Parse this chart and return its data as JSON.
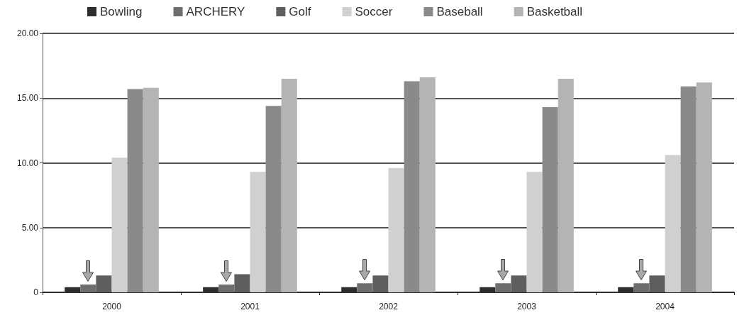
{
  "chart_data": {
    "type": "bar",
    "categories": [
      "2000",
      "2001",
      "2002",
      "2003",
      "2004"
    ],
    "series": [
      {
        "name": "Bowling",
        "color": "#2e2e2e",
        "values": [
          0.4,
          0.4,
          0.4,
          0.4,
          0.4
        ]
      },
      {
        "name": "ARCHERY",
        "color": "#6e6e6e",
        "values": [
          0.6,
          0.6,
          0.7,
          0.7,
          0.7
        ]
      },
      {
        "name": "Golf",
        "color": "#5e5e5e",
        "values": [
          1.3,
          1.4,
          1.3,
          1.3,
          1.3
        ]
      },
      {
        "name": "Soccer",
        "color": "#d0d0d0",
        "values": [
          10.4,
          9.3,
          9.6,
          9.3,
          10.6
        ]
      },
      {
        "name": "Baseball",
        "color": "#8a8a8a",
        "values": [
          15.7,
          14.4,
          16.3,
          14.3,
          15.9
        ]
      },
      {
        "name": "Basketball",
        "color": "#b4b4b4",
        "values": [
          15.8,
          16.5,
          16.6,
          16.5,
          16.2
        ]
      }
    ],
    "ylim": [
      0,
      20
    ],
    "yticks": [
      0,
      {
        "value": 5,
        "label": "5.00"
      },
      {
        "value": 10,
        "label": "10.00"
      },
      {
        "value": 15,
        "label": "15.00"
      },
      {
        "value": 20,
        "label": "20.00"
      }
    ],
    "grid": "y",
    "legend": "top"
  }
}
